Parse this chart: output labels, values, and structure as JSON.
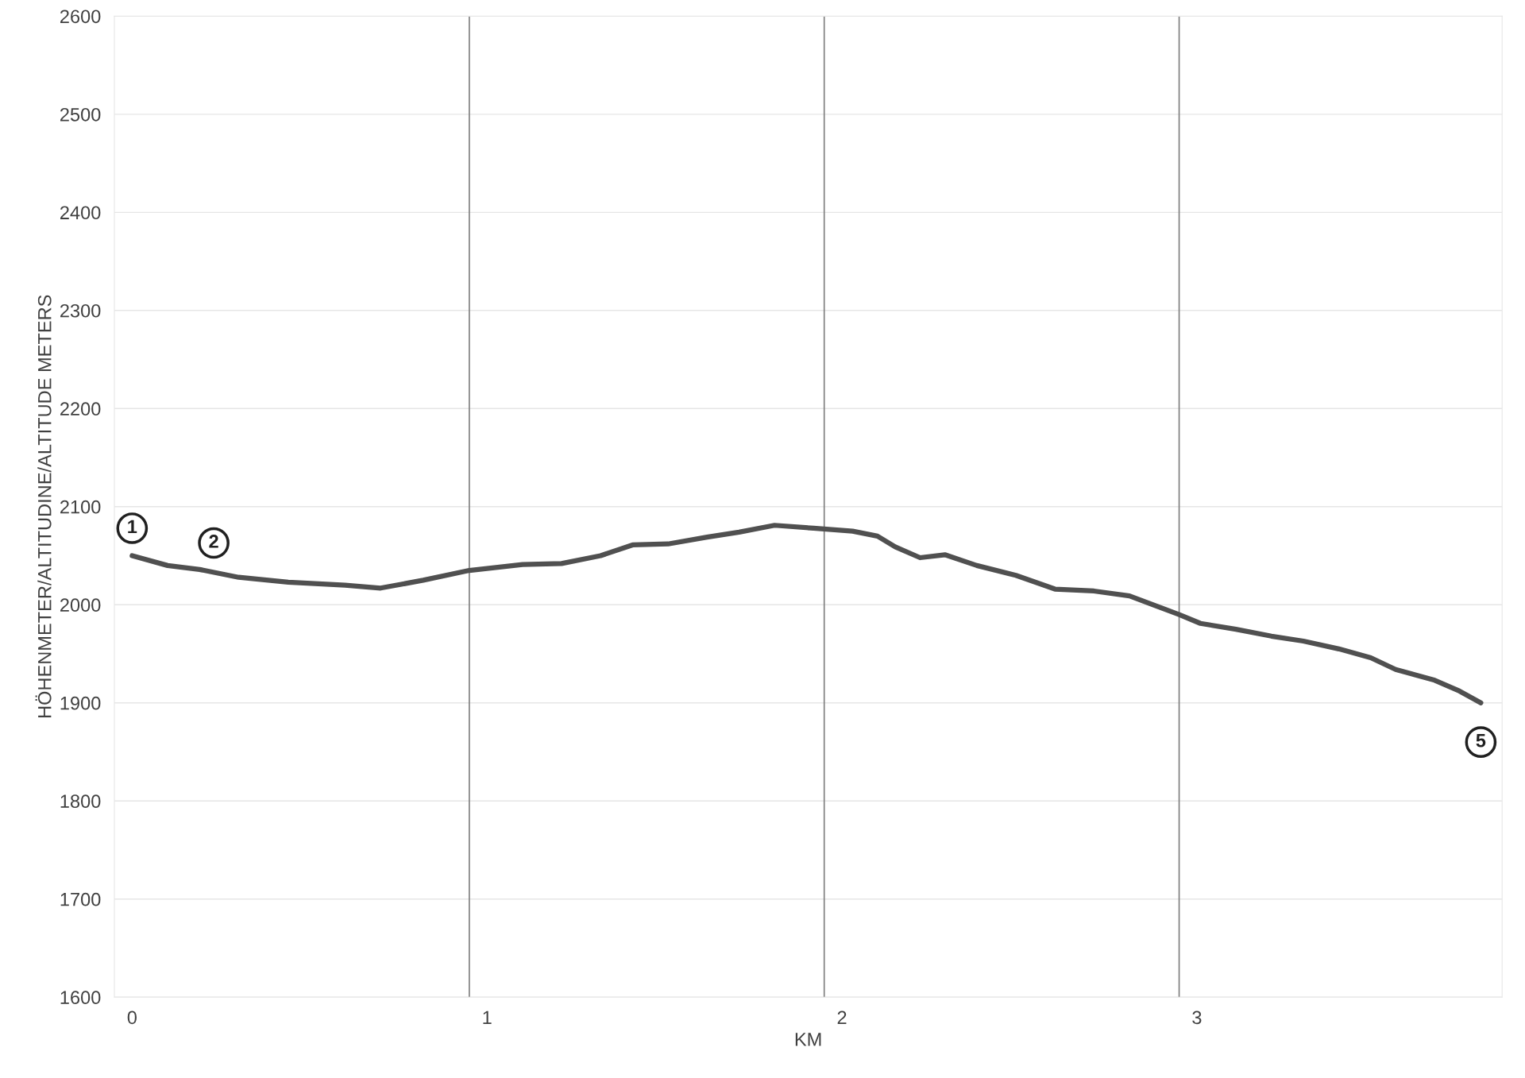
{
  "chart_data": {
    "type": "line",
    "xlabel": "KM",
    "ylabel": "HÖHENMETER/ALTITUDINE/ALTITUDE METERS",
    "x": [
      0,
      0.1,
      0.19,
      0.3,
      0.44,
      0.6,
      0.7,
      0.82,
      0.95,
      1.1,
      1.21,
      1.32,
      1.41,
      1.51,
      1.62,
      1.71,
      1.81,
      1.92,
      2.03,
      2.1,
      2.15,
      2.22,
      2.29,
      2.38,
      2.49,
      2.6,
      2.71,
      2.81,
      2.95,
      3.01,
      3.11,
      3.21,
      3.3,
      3.4,
      3.49,
      3.56,
      3.67,
      3.74,
      3.8
    ],
    "series": [
      {
        "color": "#505050",
        "values": [
          2050,
          2040,
          2036,
          2028,
          2023,
          2020,
          2017,
          2025,
          2035,
          2041,
          2042,
          2050,
          2061,
          2062,
          2069,
          2074,
          2081,
          2078,
          2075,
          2070,
          2059,
          2048,
          2051,
          2040,
          2030,
          2016,
          2014,
          2009,
          1990,
          1981,
          1975,
          1968,
          1963,
          1955,
          1946,
          1934,
          1923,
          1912,
          1900
        ]
      }
    ],
    "xlim": [
      -0.05,
      3.86
    ],
    "xticks": [
      0,
      1,
      2,
      3
    ],
    "ylim": [
      1600,
      2600
    ],
    "yticks": [
      1600,
      1700,
      1800,
      1900,
      2000,
      2100,
      2200,
      2300,
      2400,
      2500,
      2600
    ],
    "grid": "y",
    "line_style": "solid",
    "marker": "none",
    "ref_lines": [
      {
        "axis": "x",
        "value": 0.95,
        "color": "#7f7f7f"
      },
      {
        "axis": "x",
        "value": 1.95,
        "color": "#7f7f7f"
      },
      {
        "axis": "x",
        "value": 2.95,
        "color": "#7f7f7f"
      }
    ],
    "annotations": [
      {
        "text": "1",
        "x": 0,
        "y": 2078
      },
      {
        "text": "2",
        "x": 0.23,
        "y": 2063
      },
      {
        "text": "5",
        "x": 3.8,
        "y": 1860
      }
    ]
  }
}
